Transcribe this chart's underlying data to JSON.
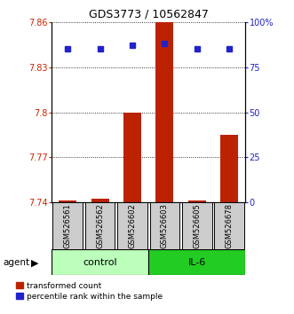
{
  "title": "GDS3773 / 10562847",
  "samples": [
    "GSM526561",
    "GSM526562",
    "GSM526602",
    "GSM526603",
    "GSM526605",
    "GSM526678"
  ],
  "groups": [
    "control",
    "control",
    "control",
    "IL-6",
    "IL-6",
    "IL-6"
  ],
  "bar_values": [
    7.7415,
    7.7425,
    7.8,
    7.868,
    7.7415,
    7.785
  ],
  "percentile_values": [
    85,
    85,
    87,
    88,
    85,
    85
  ],
  "y_min": 7.74,
  "y_max": 7.86,
  "y_ticks": [
    7.74,
    7.77,
    7.8,
    7.83,
    7.86
  ],
  "y_tick_labels": [
    "7.74",
    "7.77",
    "7.8",
    "7.83",
    "7.86"
  ],
  "right_y_ticks": [
    0,
    25,
    50,
    75,
    100
  ],
  "right_y_labels": [
    "0",
    "25",
    "50",
    "75",
    "100%"
  ],
  "bar_color": "#bb2200",
  "dot_color": "#2222cc",
  "control_color": "#bbffbb",
  "il6_color": "#22cc22",
  "control_label": "control",
  "il6_label": "IL-6",
  "agent_label": "agent",
  "legend_bar_label": "transformed count",
  "legend_dot_label": "percentile rank within the sample",
  "axis_left_color": "#cc2200",
  "axis_right_color": "#2222cc"
}
